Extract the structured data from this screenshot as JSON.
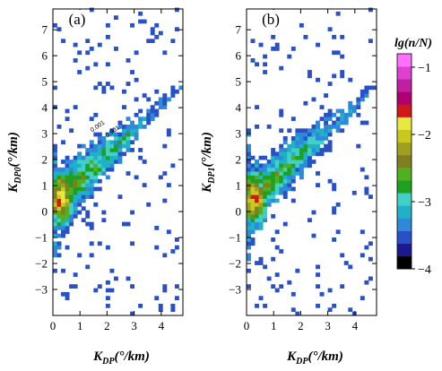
{
  "chart_data": [
    {
      "type": "heatmap",
      "panel_label": "(a)",
      "xlabel": {
        "main": "K",
        "sub": "DP",
        "unit": "(°/km)"
      },
      "ylabel": {
        "main": "K",
        "sub": "DP0",
        "unit": "(°/km)"
      },
      "xlim": [
        0,
        4.8
      ],
      "ylim": [
        -4,
        7.8
      ],
      "x_ticks": [
        0,
        1,
        2,
        3,
        4
      ],
      "y_ticks": [
        -3,
        -2,
        -1,
        0,
        1,
        2,
        3,
        4,
        5,
        6,
        7
      ],
      "contour_annotations": [
        "0.001",
        "0.001"
      ],
      "peak": {
        "x": 0.3,
        "y": 0.5,
        "lg_density": -1.5
      },
      "ridge": "density concentrated along line from (0.3, 0.5) toward (4, 4); broad scatter between y = -4 and y = 7"
    },
    {
      "type": "heatmap",
      "panel_label": "(b)",
      "xlabel": {
        "main": "K",
        "sub": "DP",
        "unit": "(°/km)"
      },
      "ylabel": {
        "main": "K",
        "sub": "DP1",
        "unit": "(°/km)"
      },
      "xlim": [
        0,
        4.8
      ],
      "ylim": [
        -4,
        7.8
      ],
      "x_ticks": [
        0,
        1,
        2,
        3,
        4
      ],
      "y_ticks": [
        -3,
        -2,
        -1,
        0,
        1,
        2,
        3,
        4,
        5,
        6,
        7
      ],
      "peak": {
        "x": 0.3,
        "y": 0.5,
        "lg_density": -1.5
      },
      "ridge": "density concentrated along line from (0.3, 0.5) toward (4, 4); broad scatter between y = -4 and y = 7"
    }
  ],
  "colorbar": {
    "title": "lg(n/N)",
    "range": [
      -4,
      -0.8
    ],
    "ticks": [
      -1,
      -2,
      -3,
      -4
    ],
    "colors": [
      "#000000",
      "#1a1a8c",
      "#2a50c8",
      "#2e8ad8",
      "#20b0c8",
      "#40d0c8",
      "#20a020",
      "#50b020",
      "#808020",
      "#a0a020",
      "#c8c820",
      "#e8e840",
      "#d01818",
      "#b00070",
      "#c020a0",
      "#e040d0",
      "#ff70ff"
    ]
  }
}
